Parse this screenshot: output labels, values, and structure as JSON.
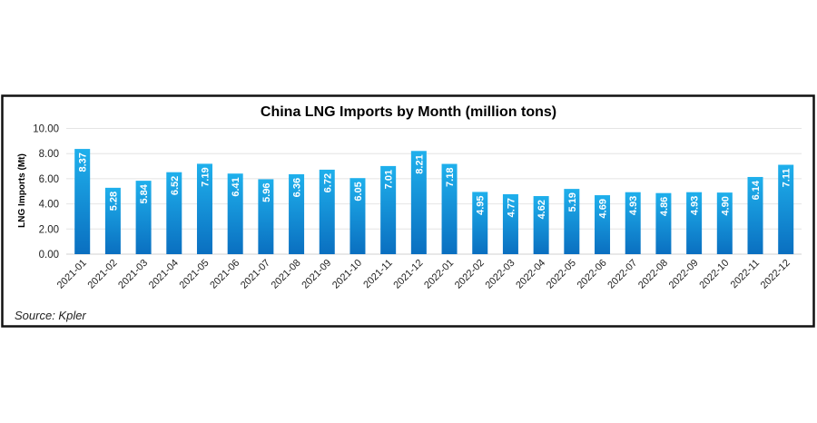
{
  "chart_data": {
    "type": "bar",
    "title": "China LNG Imports by Month (million tons)",
    "ylabel": "LNG Imports (Mt)",
    "xlabel": "",
    "ylim": [
      0,
      10
    ],
    "yticks": [
      "0.00",
      "2.00",
      "4.00",
      "6.00",
      "8.00",
      "10.00"
    ],
    "grid": true,
    "bar_color": "#1a9ee0",
    "categories": [
      "2021-01",
      "2021-02",
      "2021-03",
      "2021-04",
      "2021-05",
      "2021-06",
      "2021-07",
      "2021-08",
      "2021-09",
      "2021-10",
      "2021-11",
      "2021-12",
      "2022-01",
      "2022-02",
      "2022-03",
      "2022-04",
      "2022-05",
      "2022-06",
      "2022-07",
      "2022-08",
      "2022-09",
      "2022-10",
      "2022-11",
      "2022-12"
    ],
    "values": [
      8.37,
      5.28,
      5.84,
      6.52,
      7.19,
      6.41,
      5.96,
      6.36,
      6.72,
      6.05,
      7.01,
      8.21,
      7.18,
      4.95,
      4.77,
      4.62,
      5.19,
      4.69,
      4.93,
      4.86,
      4.93,
      4.9,
      6.14,
      7.11
    ],
    "source": "Source: Kpler"
  }
}
